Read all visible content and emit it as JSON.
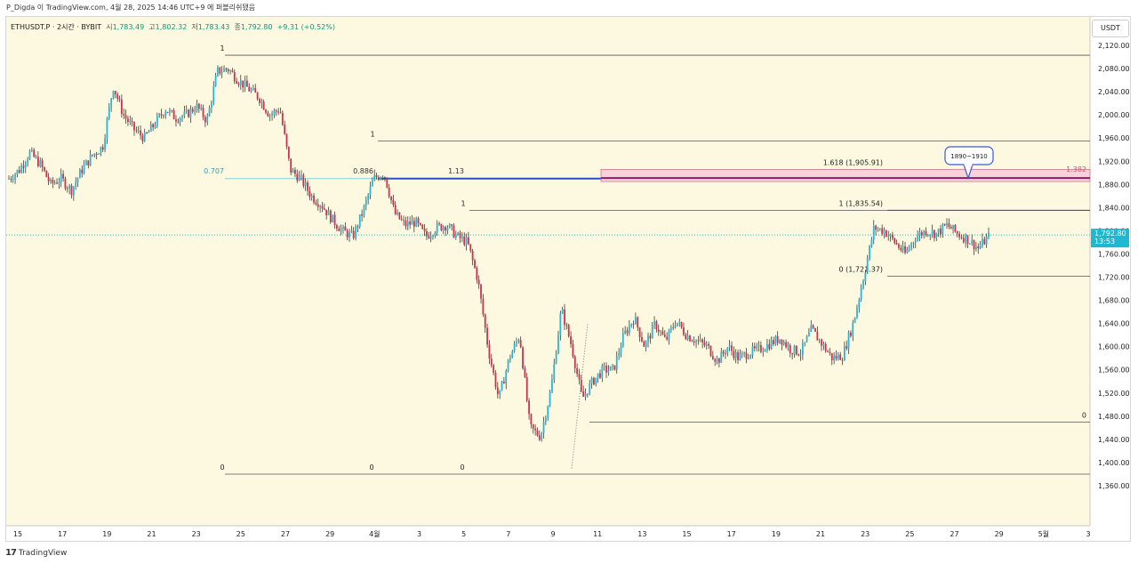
{
  "header": {
    "attribution": "P_Digda 이 TradingView.com, 4월 28, 2025 14:46 UTC+9 에 퍼블리쉬됐음"
  },
  "legend": {
    "symbol": "ETHUSDT.P · 2시간 · BYBIT",
    "open_label": "시",
    "open": "1,783.49",
    "high_label": "고",
    "high": "1,802.32",
    "low_label": "저",
    "low": "1,783.43",
    "close_label": "종",
    "close": "1,792.80",
    "change": "+9.31 (+0.52%)"
  },
  "currency_button": "USDT",
  "footer": {
    "logo": "17",
    "brand": "TradingView"
  },
  "colors": {
    "background": "#fdf9e1",
    "up": "#29b6d6",
    "down": "#d1304b",
    "wick": "#222222",
    "fib_line": "#555555",
    "target_line": "#8b1a6b",
    "zone_fill": "#f3c9d6",
    "last_price_bg": "#1fb8cf",
    "blue_line": "#2a4ec8"
  },
  "chart_data": {
    "type": "candlestick",
    "symbol": "ETHUSDT.P",
    "interval": "2시간",
    "exchange": "BYBIT",
    "ylim": [
      1340,
      2140
    ],
    "y_ticks": [
      "2,120.00",
      "2,080.00",
      "2,040.00",
      "2,000.00",
      "1,960.00",
      "1,920.00",
      "1,880.00",
      "1,840.00",
      "1,800.00",
      "1,760.00",
      "1,720.00",
      "1,680.00",
      "1,640.00",
      "1,600.00",
      "1,560.00",
      "1,520.00",
      "1,480.00",
      "1,440.00",
      "1,400.00",
      "1,360.00"
    ],
    "x_ticks": [
      "15",
      "17",
      "19",
      "21",
      "23",
      "25",
      "27",
      "29",
      "4월",
      "3",
      "5",
      "7",
      "9",
      "11",
      "13",
      "15",
      "17",
      "19",
      "21",
      "23",
      "25",
      "27",
      "29",
      "5월",
      "3"
    ],
    "last_price": "1,792.80",
    "countdown": "13:53",
    "path": [
      [
        0,
        1890
      ],
      [
        1,
        1905
      ],
      [
        2,
        1935
      ],
      [
        3,
        1915
      ],
      [
        4,
        1880
      ],
      [
        5,
        1890
      ],
      [
        6,
        1870
      ],
      [
        7,
        1905
      ],
      [
        8,
        1930
      ],
      [
        9,
        1945
      ],
      [
        10,
        2050
      ],
      [
        11,
        2000
      ],
      [
        12,
        1975
      ],
      [
        13,
        1960
      ],
      [
        14,
        1985
      ],
      [
        15,
        2010
      ],
      [
        16,
        1995
      ],
      [
        17,
        2000
      ],
      [
        18,
        2015
      ],
      [
        19,
        1990
      ],
      [
        20,
        2075
      ],
      [
        21,
        2080
      ],
      [
        22,
        2060
      ],
      [
        23,
        2045
      ],
      [
        24,
        2030
      ],
      [
        25,
        2000
      ],
      [
        26,
        2010
      ],
      [
        27,
        1905
      ],
      [
        28,
        1890
      ],
      [
        29,
        1860
      ],
      [
        30,
        1845
      ],
      [
        31,
        1820
      ],
      [
        32,
        1800
      ],
      [
        33,
        1790
      ],
      [
        34,
        1835
      ],
      [
        35,
        1890
      ],
      [
        36,
        1900
      ],
      [
        37,
        1830
      ],
      [
        38,
        1810
      ],
      [
        39,
        1815
      ],
      [
        40,
        1790
      ],
      [
        41,
        1805
      ],
      [
        42,
        1810
      ],
      [
        43,
        1790
      ],
      [
        44,
        1780
      ],
      [
        45,
        1715
      ],
      [
        46,
        1595
      ],
      [
        47,
        1510
      ],
      [
        48,
        1580
      ],
      [
        49,
        1620
      ],
      [
        50,
        1460
      ],
      [
        51,
        1445
      ],
      [
        52,
        1525
      ],
      [
        53,
        1665
      ],
      [
        54,
        1600
      ],
      [
        55,
        1510
      ],
      [
        56,
        1540
      ],
      [
        57,
        1560
      ],
      [
        58,
        1560
      ],
      [
        59,
        1620
      ],
      [
        60,
        1650
      ],
      [
        61,
        1600
      ],
      [
        62,
        1640
      ],
      [
        63,
        1610
      ],
      [
        64,
        1645
      ],
      [
        65,
        1620
      ],
      [
        66,
        1610
      ],
      [
        67,
        1600
      ],
      [
        68,
        1575
      ],
      [
        69,
        1600
      ],
      [
        70,
        1580
      ],
      [
        71,
        1590
      ],
      [
        72,
        1595
      ],
      [
        73,
        1605
      ],
      [
        74,
        1615
      ],
      [
        75,
        1595
      ],
      [
        76,
        1590
      ],
      [
        77,
        1630
      ],
      [
        78,
        1605
      ],
      [
        79,
        1580
      ],
      [
        80,
        1585
      ],
      [
        81,
        1640
      ],
      [
        82,
        1720
      ],
      [
        83,
        1805
      ],
      [
        84,
        1800
      ],
      [
        85,
        1780
      ],
      [
        86,
        1760
      ],
      [
        87,
        1790
      ],
      [
        88,
        1800
      ],
      [
        89,
        1795
      ],
      [
        90,
        1810
      ],
      [
        91,
        1795
      ],
      [
        92,
        1785
      ],
      [
        93,
        1770
      ],
      [
        94,
        1790
      ]
    ],
    "fib_levels": [
      {
        "label": "1",
        "price": 2103
      },
      {
        "label": "1",
        "price": 1955
      },
      {
        "label": "1",
        "price": 1835
      },
      {
        "label": "1 (1,835.54)",
        "price": 1835.54
      },
      {
        "label": "1.618 (1,905.91)",
        "price": 1905.91
      },
      {
        "label": "1.382",
        "price": 1896
      },
      {
        "label": "0 (1,721.37)",
        "price": 1721.37
      },
      {
        "label": "0",
        "price": 1470
      },
      {
        "label": "0",
        "price": 1380
      },
      {
        "label": "0",
        "price": 1380
      },
      {
        "label": "0",
        "price": 1380
      },
      {
        "label": "0.707",
        "price": 1890
      },
      {
        "label": "0.886",
        "price": 1890
      },
      {
        "label": "1.13",
        "price": 1890
      }
    ],
    "target_zone": {
      "label": "1890~1910",
      "low": 1885,
      "high": 1906
    }
  }
}
